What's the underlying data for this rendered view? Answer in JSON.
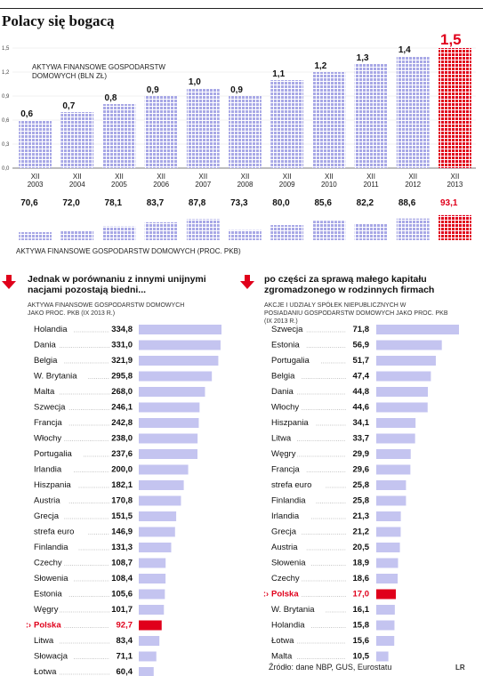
{
  "header": {
    "title": "Polacy się bogacą"
  },
  "chart_data": [
    {
      "type": "bar",
      "title": "AKTYWA FINANSOWE GOSPODARSTW DOMOWYCH (BLN ZŁ)",
      "categories": [
        {
          "month": "XII",
          "year": "2003"
        },
        {
          "month": "XII",
          "year": "2004"
        },
        {
          "month": "XII",
          "year": "2005"
        },
        {
          "month": "XII",
          "year": "2006"
        },
        {
          "month": "XII",
          "year": "2007"
        },
        {
          "month": "XII",
          "year": "2008"
        },
        {
          "month": "XII",
          "year": "2009"
        },
        {
          "month": "XII",
          "year": "2010"
        },
        {
          "month": "XII",
          "year": "2011"
        },
        {
          "month": "XII",
          "year": "2012"
        },
        {
          "month": "XII",
          "year": "2013"
        }
      ],
      "values": [
        0.6,
        0.7,
        0.8,
        0.9,
        1.0,
        0.9,
        1.1,
        1.2,
        1.3,
        1.4,
        1.5
      ],
      "value_labels": [
        "0,6",
        "0,7",
        "0,8",
        "0,9",
        "1,0",
        "0,9",
        "1,1",
        "1,2",
        "1,3",
        "1,4",
        "1,5"
      ],
      "yticks": [
        "0,0",
        "0,3",
        "0,6",
        "0,9",
        "1,2",
        "1,5"
      ],
      "ylim": [
        0,
        1.5
      ],
      "highlight_index": 10
    },
    {
      "type": "bar",
      "title": "AKTYWA FINANSOWE GOSPODARSTW DOMOWYCH (PROC. PKB)",
      "values": [
        70.6,
        72.0,
        78.1,
        83.7,
        87.8,
        73.3,
        80.0,
        85.6,
        82.2,
        88.6,
        93.1
      ],
      "value_labels": [
        "70,6",
        "72,0",
        "78,1",
        "83,7",
        "87,8",
        "73,3",
        "80,0",
        "85,6",
        "82,2",
        "88,6",
        "93,1"
      ],
      "highlight_index": 10
    },
    {
      "type": "bar",
      "orientation": "horizontal",
      "heading": "Jednak w porównaniu z innymi unijnymi nacjami pozostają biedni...",
      "subtitle": "AKTYWA FINANSOWE GOSPODARSTW DOMOWYCH JAKO PROC. PKB (IX 2013 R.)",
      "highlight": "Polska",
      "categories": [
        "Holandia",
        "Dania",
        "Belgia",
        "W. Brytania",
        "Malta",
        "Szwecja",
        "Francja",
        "Włochy",
        "Portugalia",
        "Irlandia",
        "Hiszpania",
        "Austria",
        "Grecja",
        "strefa euro",
        "Finlandia",
        "Czechy",
        "Słowenia",
        "Estonia",
        "Węgry",
        "Polska",
        "Litwa",
        "Słowacja",
        "Łotwa"
      ],
      "values": [
        334.8,
        331.0,
        321.9,
        295.8,
        268.0,
        246.1,
        242.8,
        238.0,
        237.6,
        200.0,
        182.1,
        170.8,
        151.5,
        146.9,
        131.3,
        108.7,
        108.4,
        105.6,
        101.7,
        92.7,
        83.4,
        71.1,
        60.4
      ],
      "value_labels": [
        "334,8",
        "331,0",
        "321,9",
        "295,8",
        "268,0",
        "246,1",
        "242,8",
        "238,0",
        "237,6",
        "200,0",
        "182,1",
        "170,8",
        "151,5",
        "146,9",
        "131,3",
        "108,7",
        "108,4",
        "105,6",
        "101,7",
        "92,7",
        "83,4",
        "71,1",
        "60,4"
      ]
    },
    {
      "type": "bar",
      "orientation": "horizontal",
      "heading": "po części za sprawą małego kapitału zgromadzonego w rodzinnych firmach",
      "subtitle": "AKCJE I UDZIAŁY SPÓŁEK NIEPUBLICZNYCH W POSIADANIU GOSPODARSTW DOMOWYCH JAKO PROC. PKB (IX 2013 R.)",
      "highlight": "Polska",
      "categories": [
        "Szwecja",
        "Estonia",
        "Portugalia",
        "Belgia",
        "Dania",
        "Włochy",
        "Hiszpania",
        "Litwa",
        "Węgry",
        "Francja",
        "strefa euro",
        "Finlandia",
        "Irlandia",
        "Grecja",
        "Austria",
        "Słowenia",
        "Czechy",
        "Polska",
        "W. Brytania",
        "Holandia",
        "Łotwa",
        "Malta"
      ],
      "values": [
        71.8,
        56.9,
        51.7,
        47.4,
        44.8,
        44.6,
        34.1,
        33.7,
        29.9,
        29.6,
        25.8,
        25.8,
        21.3,
        21.2,
        20.5,
        18.9,
        18.6,
        17.0,
        16.1,
        15.8,
        15.6,
        10.5
      ],
      "value_labels": [
        "71,8",
        "56,9",
        "51,7",
        "47,4",
        "44,8",
        "44,6",
        "34,1",
        "33,7",
        "29,9",
        "29,6",
        "25,8",
        "25,8",
        "21,3",
        "21,2",
        "20,5",
        "18,9",
        "18,6",
        "17,0",
        "16,1",
        "15,8",
        "15,6",
        "10,5"
      ]
    }
  ],
  "footer": {
    "source": "Źródło: dane NBP, GUS, Eurostatu",
    "corner": "LR"
  },
  "colors": {
    "grid": "#a8a8e6",
    "grid_bg": "#ffffff",
    "bar": "#c4c4f0",
    "highlight": "#e0001b",
    "text": "#1a1a1a"
  }
}
